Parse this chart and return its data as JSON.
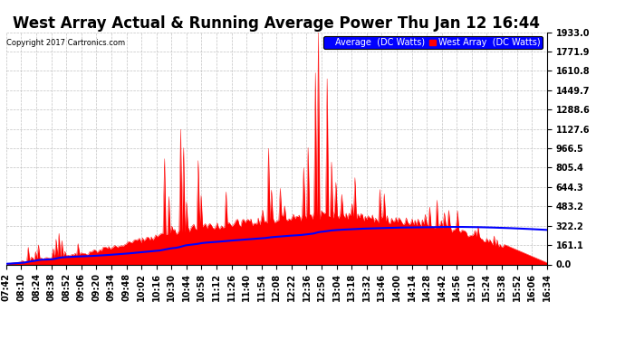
{
  "title": "West Array Actual & Running Average Power Thu Jan 12 16:44",
  "copyright": "Copyright 2017 Cartronics.com",
  "legend_labels": [
    "Average  (DC Watts)",
    "West Array  (DC Watts)"
  ],
  "yticks": [
    0.0,
    161.1,
    322.2,
    483.2,
    644.3,
    805.4,
    966.5,
    1127.6,
    1288.6,
    1449.7,
    1610.8,
    1771.9,
    1933.0
  ],
  "ymax": 1933.0,
  "ymin": 0.0,
  "background_color": "#ffffff",
  "grid_color": "#bbbbbb",
  "fill_color": "red",
  "avg_color": "blue",
  "title_fontsize": 12,
  "tick_label_fontsize": 7,
  "time_labels": [
    "07:42",
    "08:10",
    "08:24",
    "08:38",
    "08:52",
    "09:06",
    "09:20",
    "09:34",
    "09:48",
    "10:02",
    "10:16",
    "10:30",
    "10:44",
    "10:58",
    "11:12",
    "11:26",
    "11:40",
    "11:54",
    "12:08",
    "12:22",
    "12:36",
    "12:50",
    "13:04",
    "13:18",
    "13:32",
    "13:46",
    "14:00",
    "14:14",
    "14:28",
    "14:42",
    "14:56",
    "15:10",
    "15:24",
    "15:38",
    "15:52",
    "16:06",
    "16:34"
  ]
}
